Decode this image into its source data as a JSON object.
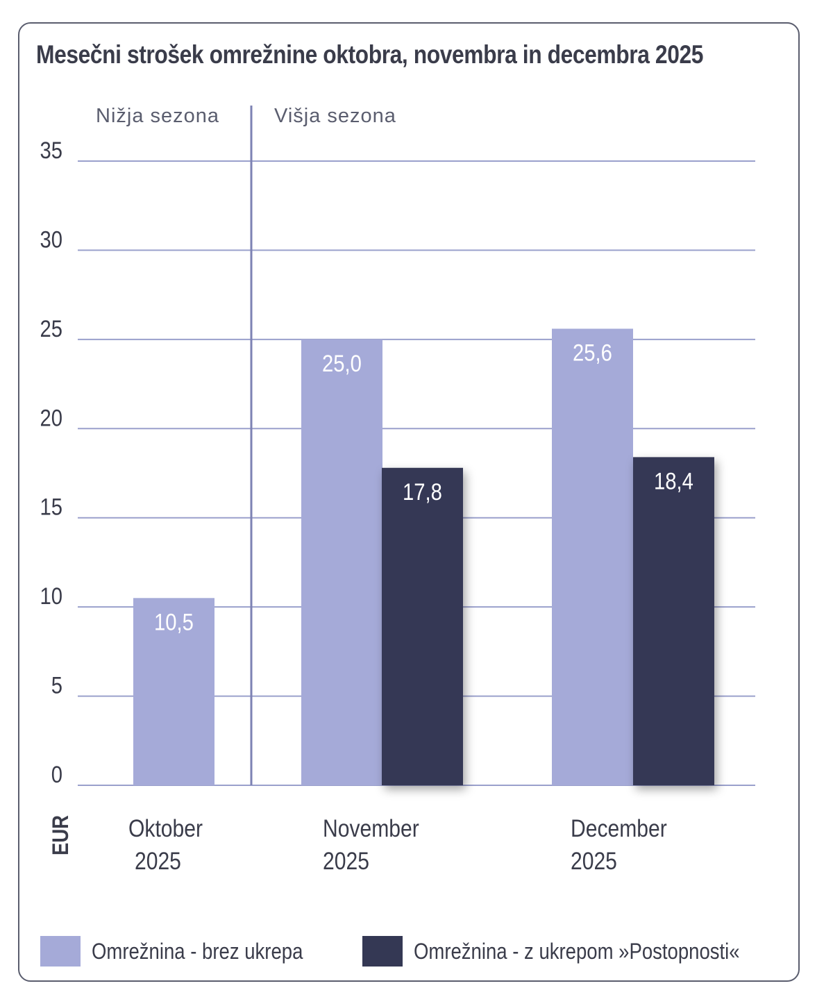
{
  "chart_data": {
    "type": "bar",
    "title": "Mesečni strošek omrežnine oktobra, novembra in decembra 2025",
    "ylabel": "EUR",
    "ylim": [
      0,
      35
    ],
    "yticks": [
      0,
      5,
      10,
      15,
      20,
      25,
      30,
      35
    ],
    "categories": [
      {
        "line1": "Oktober",
        "line2": "2025"
      },
      {
        "line1": "November",
        "line2": "2025"
      },
      {
        "line1": "December",
        "line2": "2025"
      }
    ],
    "series": [
      {
        "name": "Omrežnina - brez ukrepa",
        "color": "#a5aad8",
        "values": [
          10.5,
          25.0,
          25.6
        ],
        "labels": [
          "10,5",
          "25,0",
          "25,6"
        ]
      },
      {
        "name": "Omrežnina - z ukrepom »Postopnosti«",
        "color": "#343854",
        "values": [
          null,
          17.8,
          18.4
        ],
        "labels": [
          "",
          "17,8",
          "18,4"
        ]
      }
    ],
    "annotations": {
      "low_season": "Nižja sezona",
      "high_season": "Višja sezona"
    },
    "grid": true,
    "legend_position": "bottom"
  }
}
